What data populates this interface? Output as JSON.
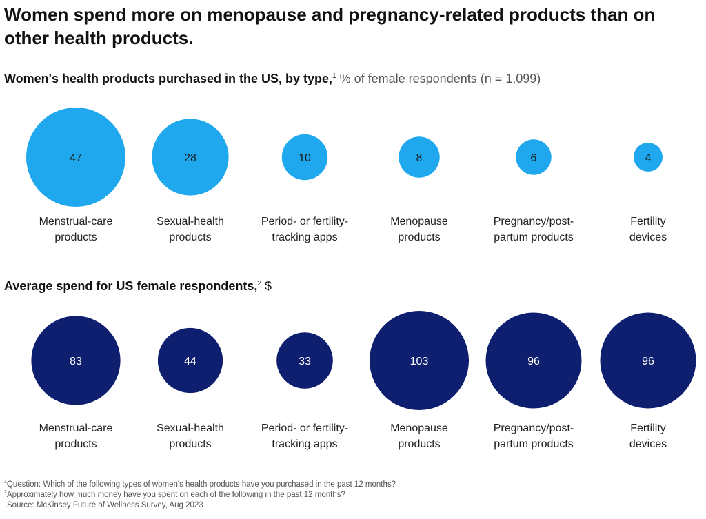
{
  "title": "Women spend more on menopause and pregnancy-related products than on other health products.",
  "chart_data": [
    {
      "type": "bubble",
      "title_bold": "Women's health products purchased in the US, by type,",
      "title_footnote": "1",
      "title_rest": "% of female respondents (n = 1,099)",
      "color": "#1fa8ee",
      "label_color": "#1a1a1a",
      "categories": [
        [
          "Menstrual-care",
          "products"
        ],
        [
          "Sexual-health",
          "products"
        ],
        [
          "Period- or fertility-",
          "tracking apps"
        ],
        [
          "Menopause",
          "products"
        ],
        [
          "Pregnancy/post-",
          "partum products"
        ],
        [
          "Fertility",
          "devices"
        ]
      ],
      "values": [
        47,
        28,
        10,
        8,
        6,
        4
      ]
    },
    {
      "type": "bubble",
      "title_bold": "Average spend for US female respondents,",
      "title_footnote": "2",
      "title_rest": "$",
      "color": "#0d1f6e",
      "label_color": "#ffffff",
      "categories": [
        [
          "Menstrual-care",
          "products"
        ],
        [
          "Sexual-health",
          "products"
        ],
        [
          "Period- or fertility-",
          "tracking apps"
        ],
        [
          "Menopause",
          "products"
        ],
        [
          "Pregnancy/post-",
          "partum products"
        ],
        [
          "Fertility",
          "devices"
        ]
      ],
      "values": [
        83,
        44,
        33,
        103,
        96,
        96
      ]
    }
  ],
  "footnotes": {
    "note1_mark": "1",
    "note1": "Question: Which of the following types of women's health products have you purchased in the past 12 months?",
    "note2_mark": "2",
    "note2": "Approximately how much money have you spent on each of the following in the past 12 months?",
    "source": "Source: McKinsey Future of Wellness Survey, Aug 2023"
  }
}
